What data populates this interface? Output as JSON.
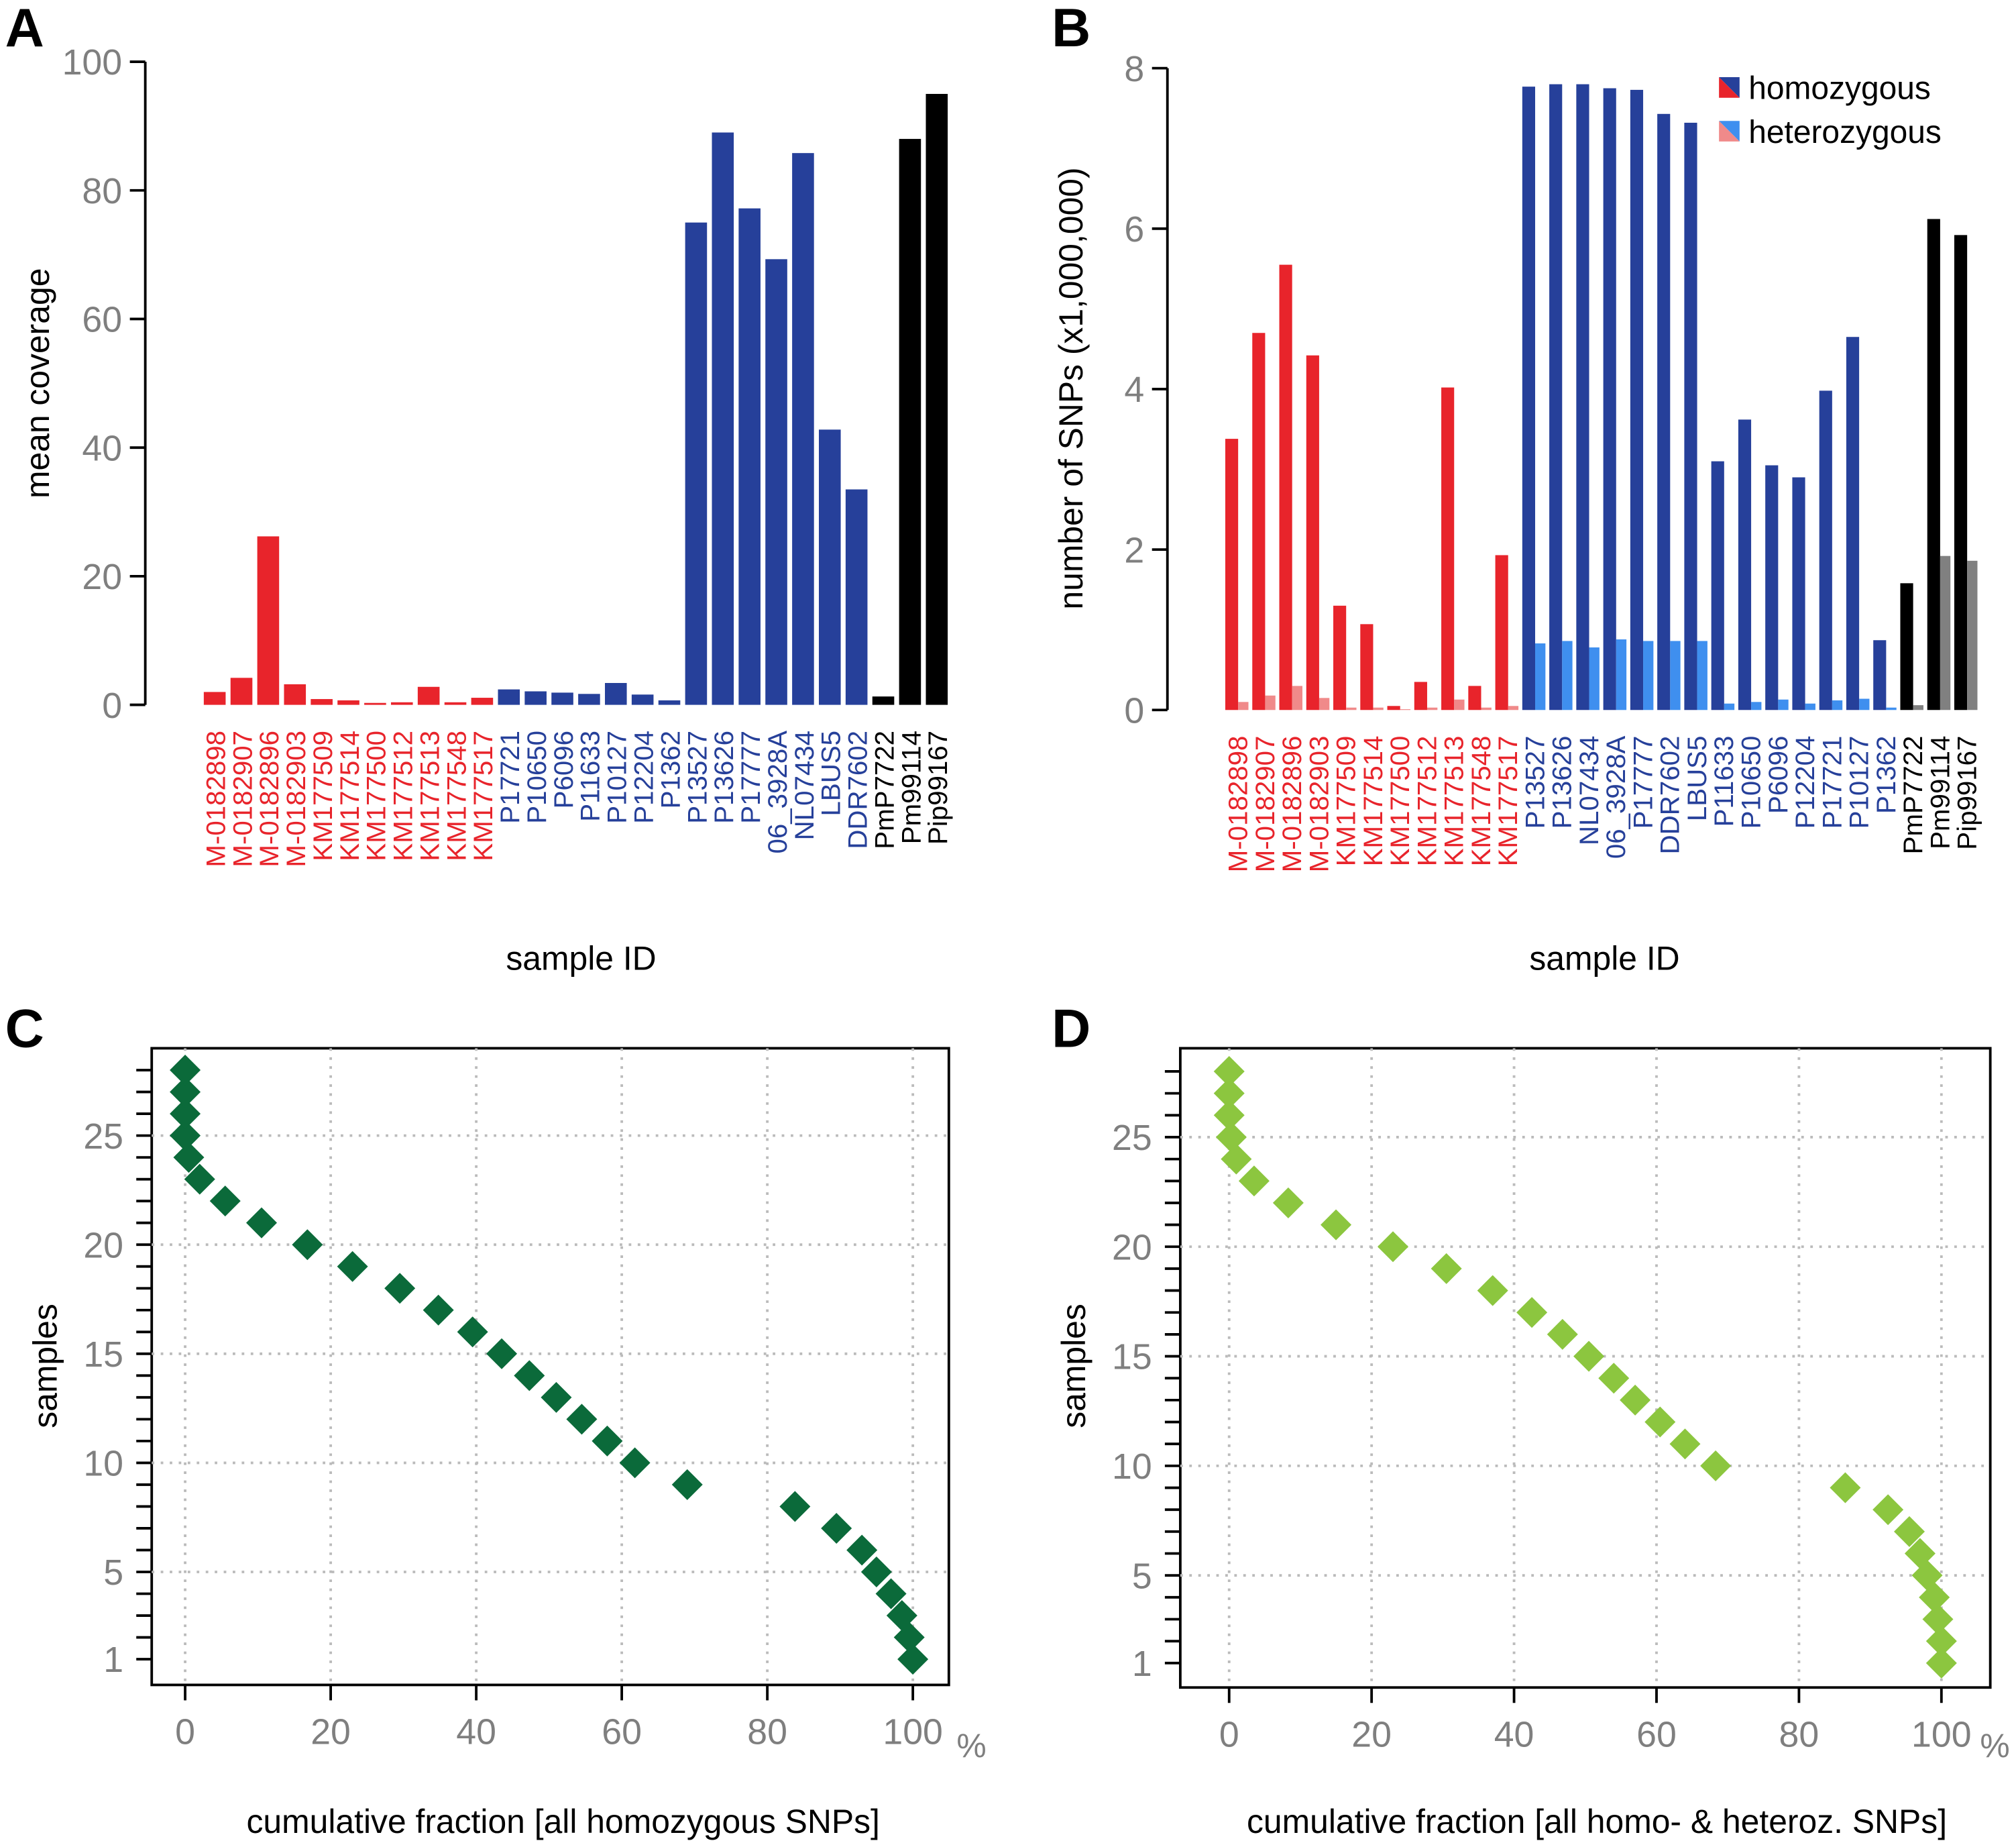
{
  "colors": {
    "red": "#e8242b",
    "red_light": "#f08a8a",
    "blue": "#26409a",
    "blue_light": "#3f8fef",
    "black": "#000000",
    "grey": "#808080",
    "green_dark": "#0b6a3a",
    "green_light": "#8cc63f",
    "tick_grey": "#7f7f7f"
  },
  "chart_data": [
    {
      "panel": "A",
      "type": "bar",
      "ylabel": "mean coverage",
      "xlabel": "sample ID",
      "ylim": [
        0,
        100
      ],
      "yticks": [
        0,
        20,
        40,
        60,
        80,
        100
      ],
      "grid": false,
      "categories": [
        "M-0182898",
        "M-0182907",
        "M-0182896",
        "M-0182903",
        "KM177509",
        "KM177514",
        "KM177500",
        "KM177512",
        "KM177513",
        "KM177548",
        "KM177517",
        "P17721",
        "P10650",
        "P6096",
        "P11633",
        "P10127",
        "P12204",
        "P1362",
        "P13527",
        "P13626",
        "P17777",
        "06_3928A",
        "NL07434",
        "LBUS5",
        "DDR7602",
        "PmP7722",
        "Pm99114",
        "Pip99167"
      ],
      "groups": [
        "red",
        "red",
        "red",
        "red",
        "red",
        "red",
        "red",
        "red",
        "red",
        "red",
        "red",
        "blue",
        "blue",
        "blue",
        "blue",
        "blue",
        "blue",
        "blue",
        "blue",
        "blue",
        "blue",
        "blue",
        "blue",
        "blue",
        "blue",
        "black",
        "black",
        "black"
      ],
      "values": [
        2.0,
        4.2,
        26.2,
        3.2,
        0.9,
        0.7,
        0.3,
        0.4,
        2.8,
        0.4,
        1.1,
        2.4,
        2.1,
        1.9,
        1.7,
        3.4,
        1.6,
        0.7,
        75.0,
        89.0,
        77.2,
        69.3,
        85.8,
        42.8,
        33.5,
        1.3,
        88.0,
        95.0
      ]
    },
    {
      "panel": "B",
      "type": "bar",
      "ylabel": "number of SNPs (x1,000,000)",
      "xlabel": "sample ID",
      "ylim": [
        0,
        8
      ],
      "yticks": [
        0,
        2,
        4,
        6,
        8
      ],
      "grid": false,
      "legend_position": "top-right",
      "categories": [
        "M-0182898",
        "M-0182907",
        "M-0182896",
        "M-0182903",
        "KM177509",
        "KM177514",
        "KM177500",
        "KM177512",
        "KM177513",
        "KM177548",
        "KM177517",
        "P13527",
        "P13626",
        "NL07434",
        "06_3928A",
        "P17777",
        "DDR7602",
        "LBUS5",
        "P11633",
        "P10650",
        "P6096",
        "P12204",
        "P17721",
        "P10127",
        "P1362",
        "PmP7722",
        "Pm99114",
        "Pip99167"
      ],
      "groups": [
        "red",
        "red",
        "red",
        "red",
        "red",
        "red",
        "red",
        "red",
        "red",
        "red",
        "red",
        "blue",
        "blue",
        "blue",
        "blue",
        "blue",
        "blue",
        "blue",
        "blue",
        "blue",
        "blue",
        "blue",
        "blue",
        "blue",
        "blue",
        "black",
        "black",
        "black"
      ],
      "series": [
        {
          "name": "homozygous",
          "values": [
            3.38,
            4.7,
            5.55,
            4.42,
            1.3,
            1.07,
            0.05,
            0.35,
            4.02,
            0.3,
            1.93,
            7.77,
            7.8,
            7.8,
            7.75,
            7.73,
            7.43,
            7.32,
            3.1,
            3.62,
            3.05,
            2.9,
            3.98,
            4.65,
            0.87,
            1.58,
            6.12,
            5.92
          ]
        },
        {
          "name": "heterozygous",
          "values": [
            0.1,
            0.18,
            0.3,
            0.15,
            0.03,
            0.03,
            0.01,
            0.03,
            0.13,
            0.03,
            0.05,
            0.83,
            0.86,
            0.78,
            0.88,
            0.86,
            0.86,
            0.86,
            0.08,
            0.1,
            0.13,
            0.08,
            0.12,
            0.14,
            0.03,
            0.06,
            1.92,
            1.86
          ]
        }
      ]
    },
    {
      "panel": "C",
      "type": "scatter",
      "xlabel": "cumulative fraction [all homozygous SNPs]",
      "ylabel": "samples",
      "xunit": "%",
      "xlim": [
        0,
        100
      ],
      "ylim": [
        1,
        28
      ],
      "xticks": [
        0,
        20,
        40,
        60,
        80,
        100
      ],
      "yticks": [
        1,
        5,
        10,
        15,
        20,
        25
      ],
      "grid": true,
      "marker": "diamond",
      "y": [
        1,
        2,
        3,
        4,
        5,
        6,
        7,
        8,
        9,
        10,
        11,
        12,
        13,
        14,
        15,
        16,
        17,
        18,
        19,
        20,
        21,
        22,
        23,
        24,
        25,
        26,
        27,
        28
      ],
      "x": [
        100,
        99.5,
        98.5,
        97,
        95,
        93,
        89.5,
        83.8,
        69,
        61.8,
        58,
        54.5,
        51,
        47.3,
        43.5,
        39.5,
        34.8,
        29.5,
        23,
        16.8,
        10.5,
        5.5,
        2,
        0.5,
        0,
        0,
        0,
        0
      ]
    },
    {
      "panel": "D",
      "type": "scatter",
      "xlabel": "cumulative fraction [all homo- & heteroz. SNPs]",
      "ylabel": "samples",
      "xunit": "%",
      "xlim": [
        0,
        100
      ],
      "ylim": [
        1,
        28
      ],
      "xticks": [
        0,
        20,
        40,
        60,
        80,
        100
      ],
      "yticks": [
        1,
        5,
        10,
        15,
        20,
        25
      ],
      "grid": true,
      "marker": "diamond",
      "y": [
        1,
        2,
        3,
        4,
        5,
        6,
        7,
        8,
        9,
        10,
        11,
        12,
        13,
        14,
        15,
        16,
        17,
        18,
        19,
        20,
        21,
        22,
        23,
        24,
        25,
        26,
        27,
        28
      ],
      "x": [
        100,
        100,
        99.5,
        99,
        98,
        97,
        95.5,
        92.5,
        86.5,
        68.3,
        64,
        60.5,
        57,
        54,
        50.5,
        46.8,
        42.5,
        37,
        30.5,
        23,
        15,
        8.3,
        3.5,
        1,
        0.3,
        0,
        0,
        0
      ]
    }
  ]
}
